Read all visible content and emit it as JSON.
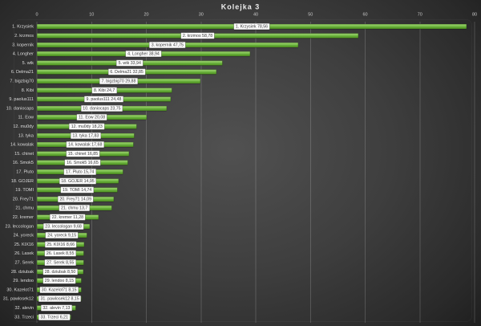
{
  "chart_data": {
    "type": "bar",
    "orientation": "horizontal",
    "title": "Kolejka 3",
    "xlabel": "",
    "ylabel": "",
    "xlim": [
      0,
      80
    ],
    "x_ticks": [
      0,
      10,
      20,
      30,
      40,
      50,
      60,
      70,
      80
    ],
    "grid": true,
    "legend": false,
    "bar_color": "#6db63e",
    "background_color": "#3a3a3a",
    "data_label_style": "white box, category name + value, comma decimal separator",
    "categories": [
      "1. Krzysiek",
      "2. krzmos",
      "3. kopernik",
      "4. Longher",
      "5. wtk",
      "6. Delma21",
      "7. bigzbig70",
      "8. Kibi",
      "9. paolus111",
      "10. daniocaps",
      "11. Eow",
      "12. mu0dy",
      "13. tyka",
      "14. kowalak",
      "15. chinet",
      "16. Smok5",
      "17. Pluto",
      "18. GOJER",
      "19. TOMI",
      "20. Frey71",
      "21. chmu",
      "22. kremer",
      "23. leccologan",
      "24. yoreck",
      "25. KIX16",
      "26. Lasek",
      "27. Serek",
      "28. dziubak",
      "29. lendoo",
      "30. Kazelot71",
      "31. pawlosek12",
      "32. alevin",
      "33. Trzeci"
    ],
    "values": [
      78.56,
      58.78,
      47.75,
      38.94,
      33.94,
      32.85,
      29.88,
      24.7,
      24.48,
      23.75,
      20.08,
      18.23,
      17.83,
      17.68,
      16.85,
      16.65,
      15.74,
      14.95,
      14.74,
      14.09,
      13.7,
      11.28,
      9.68,
      9.15,
      8.66,
      8.55,
      8.55,
      8.5,
      8.15,
      8.15,
      8.15,
      7.13,
      6.21
    ],
    "value_labels": [
      "78,56",
      "58,78",
      "47,75",
      "38,94",
      "33,94",
      "32,85",
      "29,88",
      "24,7",
      "24,48",
      "23,75",
      "20,08",
      "18,23",
      "17,83",
      "17,68",
      "16,85",
      "16,65",
      "15,74",
      "14,95",
      "14,74",
      "14,09",
      "13,7",
      "11,28",
      "9,68",
      "9,15",
      "8,66",
      "8,55",
      "8,55",
      "8,50",
      "8,15",
      "8,15",
      "8,15",
      "7,13",
      "6,21"
    ]
  }
}
